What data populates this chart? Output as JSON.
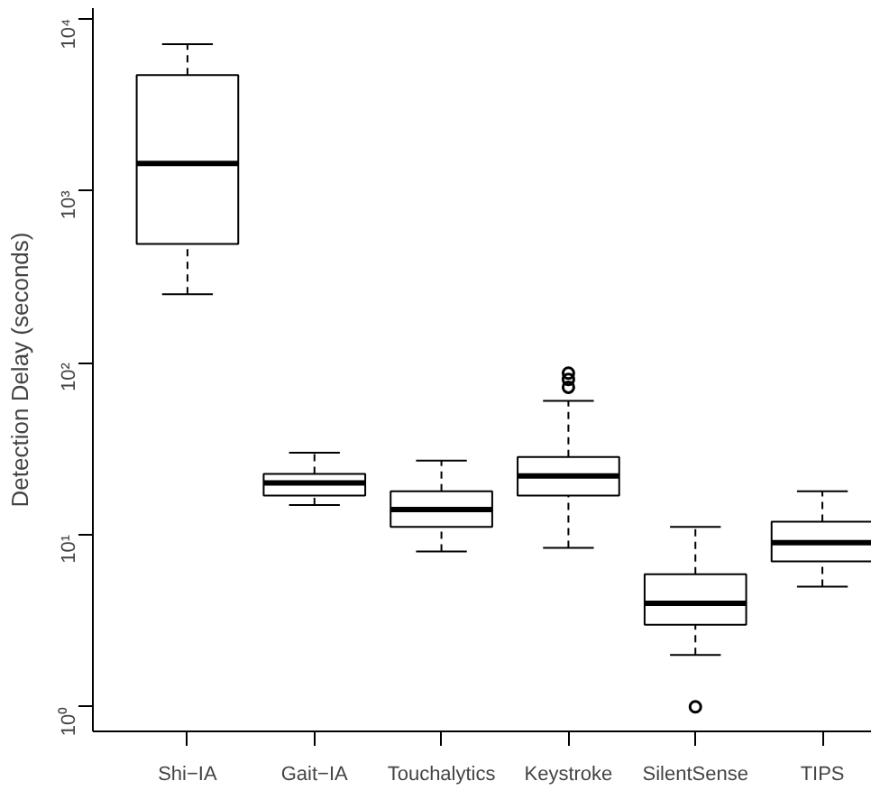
{
  "chart_data": {
    "type": "box",
    "ylabel": "Detection Delay (seconds)",
    "log": "y",
    "grid": false,
    "categories": [
      "Shi−IA",
      "Gait−IA",
      "Touchalytics",
      "Keystroke",
      "SilentSense",
      "TIPS"
    ],
    "boxes": [
      {
        "low": 250,
        "q1": 490,
        "median": 1440,
        "q3": 4700,
        "high": 7100
      },
      {
        "low": 14.9,
        "q1": 16.9,
        "median": 20,
        "q3": 22.6,
        "high": 30
      },
      {
        "low": 8,
        "q1": 11.1,
        "median": 14,
        "q3": 17.9,
        "high": 27
      },
      {
        "low": 8.4,
        "q1": 16.9,
        "median": 22,
        "q3": 28.3,
        "high": 60,
        "outliers": [
          72,
          80,
          87
        ]
      },
      {
        "low": 2,
        "q1": 3,
        "median": 4,
        "q3": 5.9,
        "high": 11.1,
        "outliers": [
          1
        ]
      },
      {
        "low": 5,
        "q1": 7,
        "median": 9,
        "q3": 11.9,
        "high": 17.9
      }
    ],
    "ylim": [
      0.72,
      11500
    ],
    "yticks": [
      {
        "value": 1,
        "label": "10⁰"
      },
      {
        "value": 10,
        "label": "10¹"
      },
      {
        "value": 100,
        "label": "10²"
      },
      {
        "value": 1000,
        "label": "10³"
      },
      {
        "value": 10000,
        "label": "10⁴"
      }
    ]
  }
}
